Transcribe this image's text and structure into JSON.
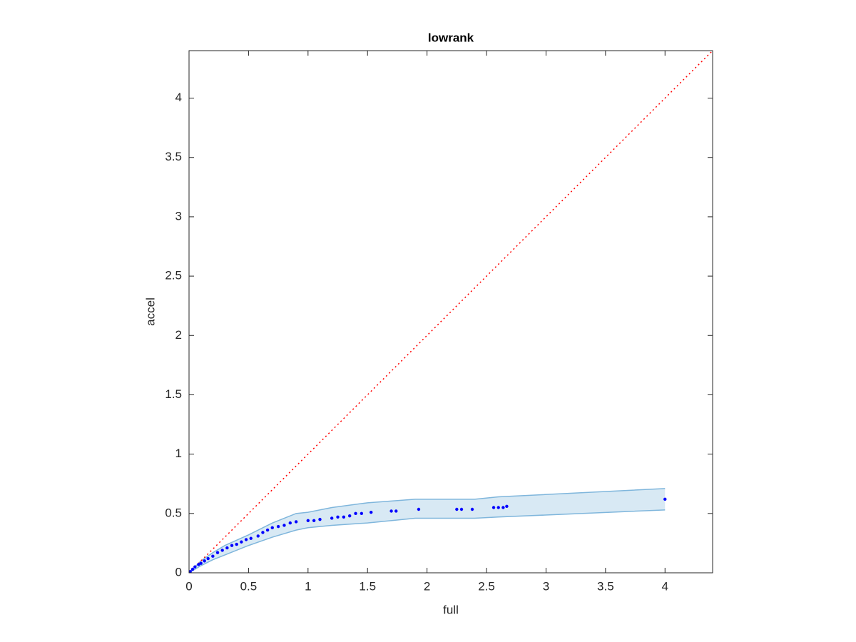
{
  "chart_data": {
    "type": "scatter",
    "title": "lowrank",
    "x_label": "full",
    "y_label": "accel",
    "x": [
      0.01,
      0.03,
      0.05,
      0.08,
      0.1,
      0.13,
      0.16,
      0.2,
      0.24,
      0.28,
      0.32,
      0.36,
      0.4,
      0.44,
      0.48,
      0.52,
      0.58,
      0.62,
      0.66,
      0.7,
      0.75,
      0.8,
      0.85,
      0.9,
      1.0,
      1.05,
      1.1,
      1.2,
      1.25,
      1.3,
      1.35,
      1.4,
      1.45,
      1.53,
      1.7,
      1.74,
      1.93,
      2.25,
      2.29,
      2.38,
      2.56,
      2.6,
      2.64,
      2.67,
      4.0
    ],
    "y": [
      0.01,
      0.03,
      0.05,
      0.07,
      0.08,
      0.1,
      0.12,
      0.14,
      0.17,
      0.19,
      0.21,
      0.23,
      0.24,
      0.26,
      0.28,
      0.29,
      0.31,
      0.34,
      0.36,
      0.38,
      0.39,
      0.4,
      0.42,
      0.43,
      0.44,
      0.44,
      0.45,
      0.46,
      0.47,
      0.47,
      0.48,
      0.5,
      0.5,
      0.51,
      0.52,
      0.52,
      0.535,
      0.535,
      0.535,
      0.535,
      0.55,
      0.55,
      0.55,
      0.56,
      0.62
    ],
    "color": "#0000ff",
    "band": {
      "x": [
        0,
        0.1,
        0.2,
        0.3,
        0.5,
        0.7,
        0.9,
        1.0,
        1.2,
        1.5,
        1.9,
        2.4,
        2.6,
        4.0
      ],
      "upper": [
        0,
        0.1,
        0.17,
        0.23,
        0.32,
        0.42,
        0.5,
        0.51,
        0.55,
        0.59,
        0.62,
        0.62,
        0.64,
        0.71
      ],
      "lower": [
        0,
        0.06,
        0.11,
        0.15,
        0.23,
        0.3,
        0.36,
        0.38,
        0.4,
        0.42,
        0.46,
        0.46,
        0.47,
        0.53
      ],
      "color": "#7fb6dc"
    },
    "reference_line": {
      "x": [
        0,
        4.4
      ],
      "y": [
        0,
        4.4
      ],
      "color": "#ff0000"
    },
    "xlim": [
      0,
      4.4
    ],
    "ylim": [
      0,
      4.4
    ],
    "xticks": [
      0,
      0.5,
      1,
      1.5,
      2,
      2.5,
      3,
      3.5,
      4
    ],
    "yticks": [
      0,
      0.5,
      1,
      1.5,
      2,
      2.5,
      3,
      3.5,
      4
    ]
  }
}
